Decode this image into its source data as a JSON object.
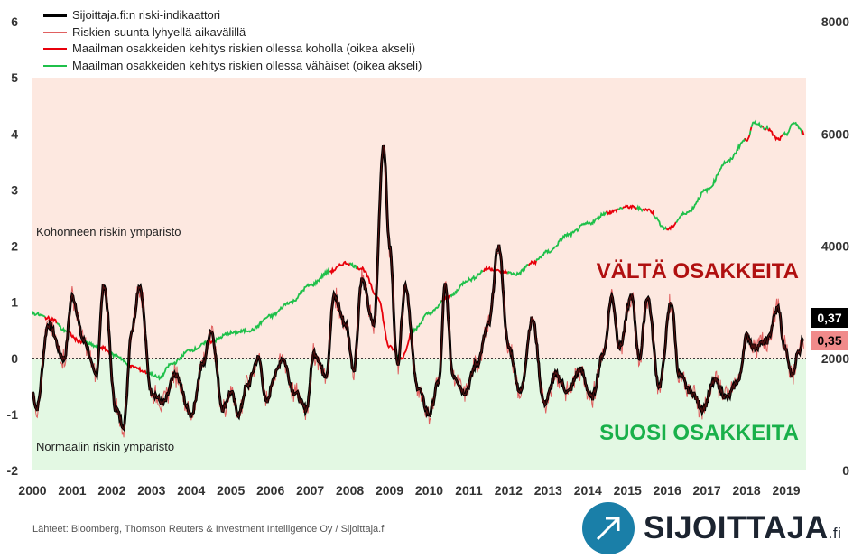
{
  "chart_data": {
    "type": "line",
    "title": "",
    "xlabel": "",
    "ylabel": "",
    "x_ticks": [
      "2000",
      "2001",
      "2002",
      "2003",
      "2004",
      "2005",
      "2006",
      "2007",
      "2008",
      "2009",
      "2010",
      "2011",
      "2012",
      "2013",
      "2014",
      "2015",
      "2016",
      "2017",
      "2018",
      "2019"
    ],
    "ylim_left": [
      -2,
      6
    ],
    "left_ticks": [
      "6",
      "5",
      "4",
      "3",
      "2",
      "1",
      "0",
      "-1",
      "-2"
    ],
    "ylim_right": [
      0,
      8000
    ],
    "right_ticks": [
      "8000",
      "6000",
      "4000",
      "2000",
      "0"
    ],
    "region_upper_label": "Kohonneen riskin ympäristö",
    "region_lower_label": "Normaalin riskin ympäristö",
    "upper_action": "VÄLTÄ OSAKKEITA",
    "lower_action": "SUOSI OSAKKEITA",
    "current_indicator": "0,37",
    "current_short": "0,35",
    "series": [
      {
        "name": "Sijoittaja.fi:n riski-indikaattori",
        "axis": "left",
        "x": [
          2000.0,
          2000.1,
          2000.4,
          2000.8,
          2001.0,
          2001.3,
          2001.6,
          2001.8,
          2002.1,
          2002.3,
          2002.5,
          2002.7,
          2003.0,
          2003.3,
          2003.6,
          2004.0,
          2004.3,
          2004.5,
          2004.8,
          2005.0,
          2005.2,
          2005.4,
          2005.7,
          2005.9,
          2006.1,
          2006.3,
          2006.6,
          2006.9,
          2007.1,
          2007.4,
          2007.6,
          2007.9,
          2008.1,
          2008.3,
          2008.6,
          2008.85,
          2009.0,
          2009.2,
          2009.4,
          2009.7,
          2010.0,
          2010.25,
          2010.4,
          2010.6,
          2010.9,
          2011.2,
          2011.5,
          2011.75,
          2012.0,
          2012.3,
          2012.6,
          2012.9,
          2013.2,
          2013.5,
          2013.8,
          2014.1,
          2014.4,
          2014.6,
          2014.8,
          2015.1,
          2015.3,
          2015.5,
          2015.8,
          2016.1,
          2016.3,
          2016.6,
          2016.9,
          2017.2,
          2017.5,
          2017.8,
          2018.0,
          2018.2,
          2018.5,
          2018.8,
          2018.95,
          2019.15,
          2019.3,
          2019.45
        ],
        "values": [
          -0.6,
          -0.9,
          0.6,
          0.0,
          1.1,
          0.3,
          -0.3,
          1.3,
          -0.9,
          -1.2,
          0.5,
          1.3,
          -0.6,
          -0.8,
          -0.3,
          -1.0,
          -0.1,
          0.5,
          -0.9,
          -0.6,
          -1.0,
          -0.5,
          0.0,
          -0.8,
          -0.3,
          0.0,
          -0.6,
          -0.9,
          0.1,
          -0.3,
          1.1,
          0.6,
          -0.2,
          1.4,
          0.6,
          3.8,
          2.0,
          -0.1,
          1.3,
          -0.5,
          -1.0,
          -0.4,
          1.3,
          -0.3,
          -0.6,
          -0.1,
          0.6,
          2.0,
          0.2,
          -0.6,
          0.7,
          -0.8,
          -0.3,
          -0.6,
          -0.2,
          -0.7,
          0.1,
          1.1,
          0.2,
          1.1,
          0.0,
          1.1,
          -0.5,
          1.0,
          -0.3,
          -0.6,
          -0.9,
          -0.4,
          -0.7,
          -0.4,
          0.4,
          0.2,
          0.3,
          0.9,
          0.2,
          -0.3,
          0.1,
          0.37
        ]
      },
      {
        "name": "Riskien suunta lyhyellä aikavälillä",
        "axis": "left",
        "note": "same shape as indicator with noise, last value 0,35"
      },
      {
        "name": "Maailman osakkeiden kehitys riskien ollessa koholla (oikea akseli)",
        "axis": "right",
        "color": "#e8000b"
      },
      {
        "name": "Maailman osakkeiden kehitys riskien ollessa vähäiset (oikea akseli)",
        "axis": "right",
        "color": "#1fc04a",
        "x": [
          2000.0,
          2000.5,
          2000.8,
          2001.2,
          2001.7,
          2002.1,
          2002.5,
          2002.9,
          2003.2,
          2003.5,
          2004.0,
          2004.5,
          2005.0,
          2005.5,
          2006.0,
          2006.5,
          2007.0,
          2007.5,
          2007.9,
          2008.3,
          2008.7,
          2009.0,
          2009.3,
          2009.6,
          2010.0,
          2010.5,
          2011.0,
          2011.5,
          2011.8,
          2012.2,
          2012.6,
          2013.0,
          2013.5,
          2014.0,
          2014.5,
          2015.0,
          2015.5,
          2016.0,
          2016.5,
          2017.0,
          2017.5,
          2018.0,
          2018.2,
          2018.5,
          2018.8,
          2019.0,
          2019.2,
          2019.45
        ],
        "values": [
          2800,
          2700,
          2500,
          2300,
          2200,
          2050,
          1850,
          1750,
          1650,
          1900,
          2150,
          2300,
          2450,
          2500,
          2750,
          3000,
          3300,
          3550,
          3700,
          3600,
          3100,
          2200,
          2000,
          2500,
          2800,
          3100,
          3400,
          3600,
          3550,
          3500,
          3700,
          3900,
          4200,
          4400,
          4600,
          4700,
          4650,
          4300,
          4600,
          5000,
          5500,
          5900,
          6200,
          6100,
          5900,
          6000,
          6200,
          6000
        ]
      }
    ]
  },
  "source": "Lähteet: Bloomberg, Thomson Reuters & Investment Intelligence Oy / Sijoittaja.fi",
  "brand": {
    "name": "SIJOITTAJA",
    "tld": ".fi"
  },
  "colors": {
    "indicator": "#000000",
    "short_term": "#e06060",
    "stocks_high_risk": "#e8000b",
    "stocks_low_risk": "#1fc04a",
    "upper_bg": "#fde8e0",
    "lower_bg": "#e3f8e3",
    "upper_text": "#b01010",
    "lower_text": "#19b04a"
  }
}
